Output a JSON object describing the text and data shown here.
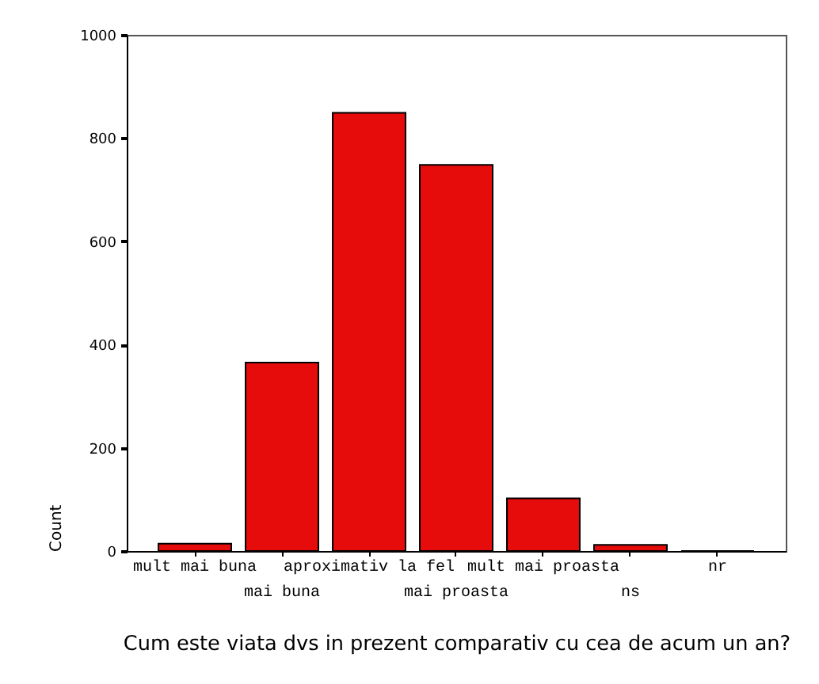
{
  "chart_data": {
    "type": "bar",
    "xlabel": "Cum este viata dvs in prezent comparativ cu cea de acum un an?",
    "ylabel": "Count",
    "categories": [
      "mult mai buna",
      "mai buna",
      "aproximativ la fel",
      "mai proasta",
      "mult mai proasta",
      "ns",
      "nr"
    ],
    "values": [
      14,
      365,
      849,
      748,
      102,
      12,
      0
    ],
    "color": "#e60c0c",
    "ylim": [
      0,
      1000
    ],
    "yticks": [
      0,
      200,
      400,
      600,
      800,
      1000
    ],
    "grid": false
  }
}
